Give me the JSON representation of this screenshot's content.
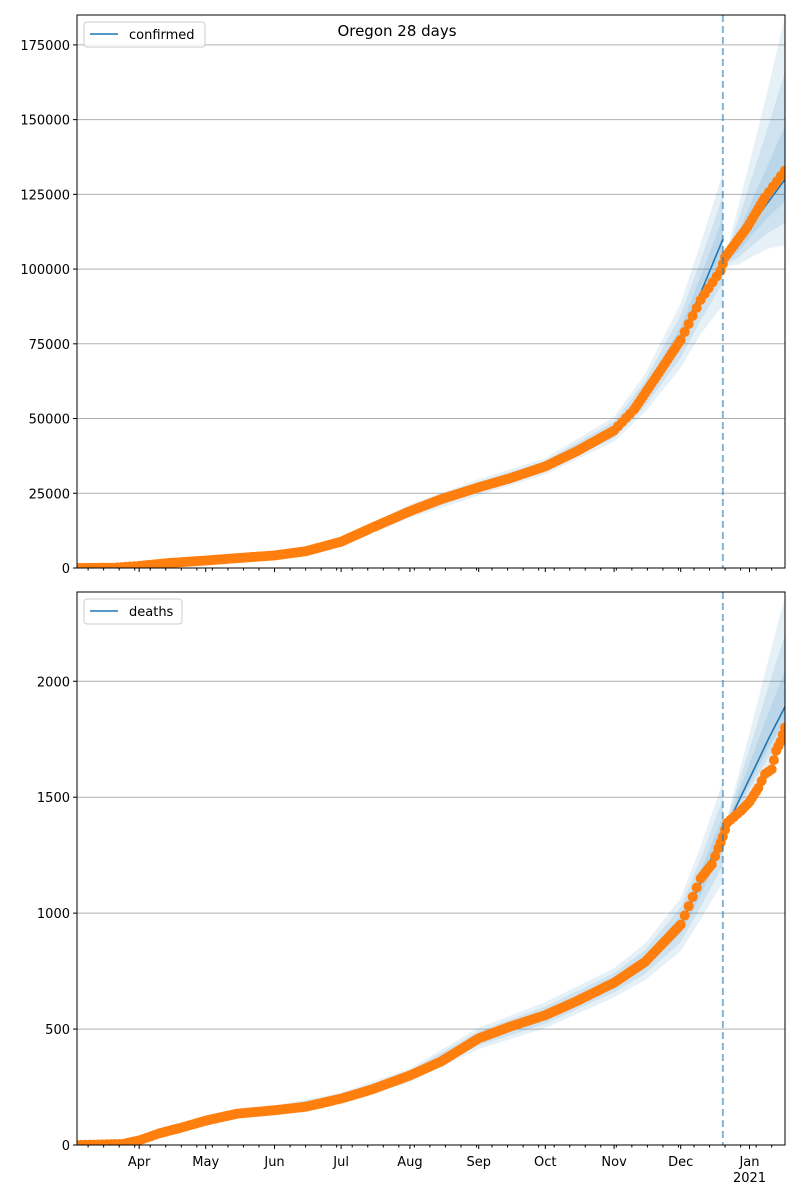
{
  "chart_data": [
    {
      "type": "line",
      "title": "Oregon 28 days",
      "legend": {
        "label": "confirmed",
        "placement": "top-left"
      },
      "xlim": [
        "2020-03-04",
        "2021-01-17"
      ],
      "ylim": [
        0,
        185000
      ],
      "yticks": [
        0,
        25000,
        50000,
        75000,
        100000,
        125000,
        150000,
        175000
      ],
      "grid": "y",
      "forecast_start": "2020-12-20",
      "observed": {
        "x": [
          "2020-03-04",
          "2020-03-20",
          "2020-04-01",
          "2020-04-15",
          "2020-05-01",
          "2020-05-15",
          "2020-06-01",
          "2020-06-15",
          "2020-07-01",
          "2020-07-15",
          "2020-08-01",
          "2020-08-15",
          "2020-09-01",
          "2020-09-15",
          "2020-10-01",
          "2020-10-15",
          "2020-11-01",
          "2020-11-10",
          "2020-11-20",
          "2020-12-01",
          "2020-12-10",
          "2020-12-19",
          "2020-12-21",
          "2020-12-31",
          "2021-01-08",
          "2021-01-17"
        ],
        "y": [
          0,
          100,
          700,
          1700,
          2500,
          3300,
          4200,
          5600,
          8800,
          13500,
          19000,
          23000,
          27000,
          30000,
          34000,
          39000,
          46000,
          53000,
          64000,
          76300,
          89700,
          99500,
          104000,
          114000,
          124000,
          133000
        ]
      },
      "model": [
        {
          "x": [
            "2020-03-04",
            "2020-04-01",
            "2020-05-01",
            "2020-06-01",
            "2020-07-01",
            "2020-08-01",
            "2020-09-01",
            "2020-10-01",
            "2020-11-01",
            "2020-11-15",
            "2020-12-01",
            "2020-12-10",
            "2020-12-20"
          ],
          "y": [
            0,
            700,
            2500,
            4200,
            8800,
            19000,
            27000,
            34000,
            46000,
            58000,
            77000,
            92000,
            110000
          ],
          "band_lo": [
            0.05,
            0.05,
            0.06,
            0.08,
            0.1,
            0.12,
            0.1,
            0.08,
            0.08,
            0.1,
            0.13,
            0.15,
            0.2
          ],
          "band_hi": [
            0.05,
            0.05,
            0.06,
            0.08,
            0.1,
            0.12,
            0.1,
            0.08,
            0.1,
            0.12,
            0.15,
            0.18,
            0.2
          ]
        },
        {
          "x": [
            "2020-12-20",
            "2020-12-27",
            "2021-01-03",
            "2021-01-10",
            "2021-01-17"
          ],
          "y": [
            101000,
            108000,
            116000,
            123000,
            130000
          ],
          "band_lo": [
            0.0,
            0.06,
            0.1,
            0.13,
            0.17
          ],
          "band_hi": [
            0.0,
            0.12,
            0.22,
            0.32,
            0.42
          ]
        }
      ]
    },
    {
      "type": "line",
      "title": "",
      "legend": {
        "label": "deaths",
        "placement": "top-left"
      },
      "xlim": [
        "2020-03-04",
        "2021-01-17"
      ],
      "ylim": [
        0,
        2385
      ],
      "yticks": [
        0,
        500,
        1000,
        1500,
        2000
      ],
      "grid": "y",
      "forecast_start": "2020-12-20",
      "xticks": [
        {
          "date": "2020-04-01",
          "label": "Apr"
        },
        {
          "date": "2020-05-01",
          "label": "May"
        },
        {
          "date": "2020-06-01",
          "label": "Jun"
        },
        {
          "date": "2020-07-01",
          "label": "Jul"
        },
        {
          "date": "2020-08-01",
          "label": "Aug"
        },
        {
          "date": "2020-09-01",
          "label": "Sep"
        },
        {
          "date": "2020-10-01",
          "label": "Oct"
        },
        {
          "date": "2020-11-01",
          "label": "Nov"
        },
        {
          "date": "2020-12-01",
          "label": "Dec"
        },
        {
          "date": "2021-01-01",
          "label": "Jan",
          "sublabel": "2021"
        }
      ],
      "observed": {
        "x": [
          "2020-03-04",
          "2020-03-25",
          "2020-04-01",
          "2020-04-10",
          "2020-04-20",
          "2020-05-01",
          "2020-05-15",
          "2020-06-01",
          "2020-06-15",
          "2020-07-01",
          "2020-07-15",
          "2020-08-01",
          "2020-08-15",
          "2020-09-01",
          "2020-09-15",
          "2020-10-01",
          "2020-10-15",
          "2020-11-01",
          "2020-11-15",
          "2020-12-01",
          "2020-12-10",
          "2020-12-15",
          "2020-12-18",
          "2020-12-20",
          "2020-12-22",
          "2020-12-25",
          "2020-12-28",
          "2021-01-01",
          "2021-01-05",
          "2021-01-08",
          "2021-01-11",
          "2021-01-13",
          "2021-01-15",
          "2021-01-17"
        ],
        "y": [
          0,
          5,
          20,
          50,
          75,
          105,
          135,
          150,
          165,
          200,
          240,
          300,
          360,
          460,
          510,
          560,
          620,
          700,
          790,
          950,
          1150,
          1210,
          1280,
          1330,
          1390,
          1415,
          1440,
          1480,
          1540,
          1600,
          1620,
          1700,
          1740,
          1800
        ]
      },
      "model": [
        {
          "x": [
            "2020-03-04",
            "2020-04-01",
            "2020-05-01",
            "2020-06-01",
            "2020-07-01",
            "2020-08-01",
            "2020-09-01",
            "2020-10-01",
            "2020-11-01",
            "2020-11-15",
            "2020-12-01",
            "2020-12-10",
            "2020-12-20"
          ],
          "y": [
            0,
            20,
            105,
            155,
            205,
            300,
            460,
            560,
            700,
            790,
            950,
            1130,
            1350
          ],
          "band_lo": [
            0.1,
            0.1,
            0.1,
            0.1,
            0.1,
            0.1,
            0.1,
            0.1,
            0.09,
            0.1,
            0.12,
            0.14,
            0.16
          ],
          "band_hi": [
            0.1,
            0.1,
            0.1,
            0.1,
            0.1,
            0.1,
            0.1,
            0.1,
            0.09,
            0.1,
            0.12,
            0.14,
            0.16
          ]
        },
        {
          "x": [
            "2020-12-20",
            "2020-12-27",
            "2021-01-03",
            "2021-01-10",
            "2021-01-17"
          ],
          "y": [
            1340,
            1480,
            1620,
            1760,
            1890
          ],
          "band_lo": [
            0.0,
            0.03,
            0.05,
            0.07,
            0.09
          ],
          "band_hi": [
            0.0,
            0.08,
            0.14,
            0.2,
            0.25
          ]
        }
      ]
    }
  ],
  "colors": {
    "line": "#1f77b4",
    "dots": "#ff7f0e",
    "band": "#1f77b4",
    "grid": "#b0b0b0"
  }
}
